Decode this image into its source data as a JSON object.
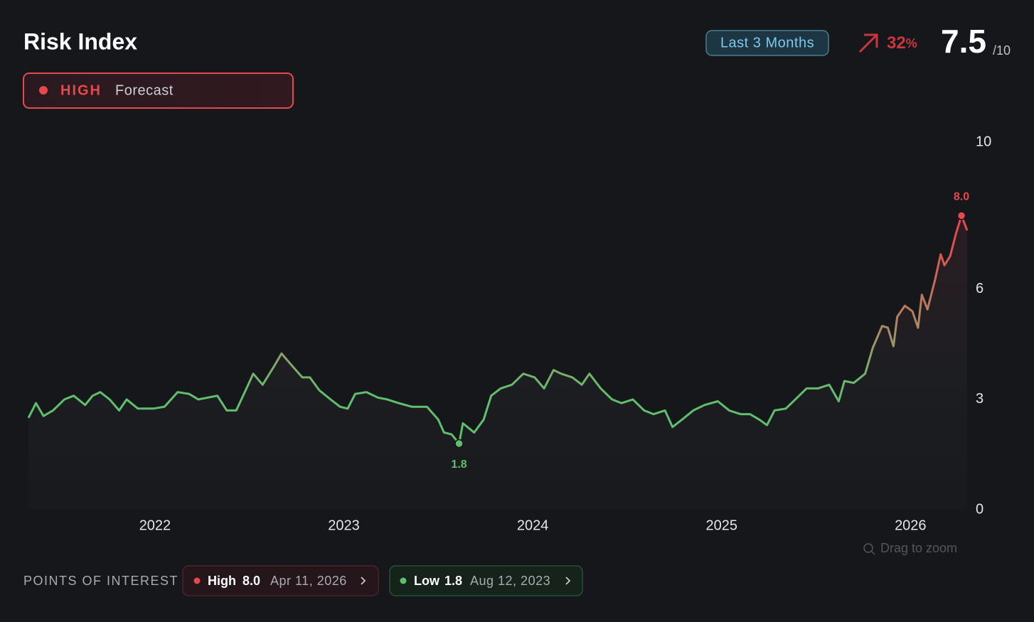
{
  "header": {
    "title": "Risk Index",
    "status": "HIGH",
    "status_note": "Forecast",
    "range": "Last 3 Months",
    "change_value": "32",
    "change_unit": "%",
    "score": "7.5",
    "score_max": "/10"
  },
  "chart_data": {
    "type": "line",
    "x": [
      2021.33,
      2021.37,
      2021.41,
      2021.46,
      2021.52,
      2021.57,
      2021.63,
      2021.67,
      2021.71,
      2021.76,
      2021.81,
      2021.85,
      2021.91,
      2021.99,
      2022.05,
      2022.12,
      2022.18,
      2022.23,
      2022.33,
      2022.38,
      2022.43,
      2022.48,
      2022.52,
      2022.57,
      2022.63,
      2022.67,
      2022.72,
      2022.78,
      2022.82,
      2022.87,
      2022.93,
      2022.98,
      2023.02,
      2023.06,
      2023.12,
      2023.18,
      2023.23,
      2023.29,
      2023.36,
      2023.44,
      2023.5,
      2023.53,
      2023.57,
      2023.61,
      2023.63,
      2023.69,
      2023.74,
      2023.78,
      2023.83,
      2023.89,
      2023.95,
      2024.01,
      2024.06,
      2024.11,
      2024.15,
      2024.21,
      2024.26,
      2024.3,
      2024.36,
      2024.42,
      2024.47,
      2024.53,
      2024.59,
      2024.64,
      2024.7,
      2024.74,
      2024.79,
      2024.85,
      2024.91,
      2024.98,
      2025.04,
      2025.1,
      2025.15,
      2025.2,
      2025.24,
      2025.28,
      2025.34,
      2025.4,
      2025.45,
      2025.51,
      2025.57,
      2025.62,
      2025.65,
      2025.7,
      2025.76,
      2025.8,
      2025.85,
      2025.88,
      2025.91,
      2025.93,
      2025.97,
      2026.01,
      2026.04,
      2026.06,
      2026.09,
      2026.13,
      2026.16,
      2026.18,
      2026.21,
      2026.24,
      2026.27,
      2026.3
    ],
    "values": [
      2.5,
      2.9,
      2.55,
      2.7,
      3.0,
      3.1,
      2.85,
      3.1,
      3.2,
      3.0,
      2.7,
      3.0,
      2.75,
      2.75,
      2.8,
      3.2,
      3.15,
      3.0,
      3.1,
      2.7,
      2.7,
      3.25,
      3.7,
      3.4,
      3.9,
      4.25,
      3.95,
      3.6,
      3.6,
      3.25,
      3.0,
      2.8,
      2.75,
      3.15,
      3.2,
      3.05,
      3.0,
      2.9,
      2.8,
      2.8,
      2.45,
      2.1,
      2.05,
      1.8,
      2.35,
      2.1,
      2.45,
      3.1,
      3.3,
      3.4,
      3.7,
      3.6,
      3.3,
      3.8,
      3.7,
      3.6,
      3.4,
      3.7,
      3.3,
      3.0,
      2.9,
      3.0,
      2.7,
      2.6,
      2.7,
      2.25,
      2.45,
      2.7,
      2.85,
      2.95,
      2.7,
      2.6,
      2.6,
      2.45,
      2.3,
      2.7,
      2.75,
      3.05,
      3.3,
      3.3,
      3.4,
      2.95,
      3.5,
      3.45,
      3.7,
      4.4,
      5.0,
      4.95,
      4.45,
      5.25,
      5.55,
      5.4,
      4.95,
      5.85,
      5.45,
      6.25,
      6.95,
      6.65,
      6.9,
      7.5,
      8.0,
      7.6
    ],
    "colors": {
      "low": "#5fbf6c",
      "high": "#e5484d"
    },
    "xlim": [
      2021.33,
      2026.3
    ],
    "xticks": [
      2022,
      2023,
      2024,
      2025,
      2026
    ],
    "ylim": [
      0,
      10
    ],
    "yticks": [
      0,
      3,
      6,
      10
    ],
    "grid": false,
    "hint": "Drag to zoom"
  },
  "points_of_interest": {
    "title": "POINTS OF INTEREST",
    "items": [
      {
        "name": "High",
        "value": 8.0,
        "value_label": "8.0",
        "date": "Apr 11, 2026",
        "x": 2026.27,
        "color": "#e5484d"
      },
      {
        "name": "Low",
        "value": 1.8,
        "value_label": "1.8",
        "date": "Aug 12, 2023",
        "x": 2023.61,
        "color": "#5fbf6c"
      }
    ]
  }
}
